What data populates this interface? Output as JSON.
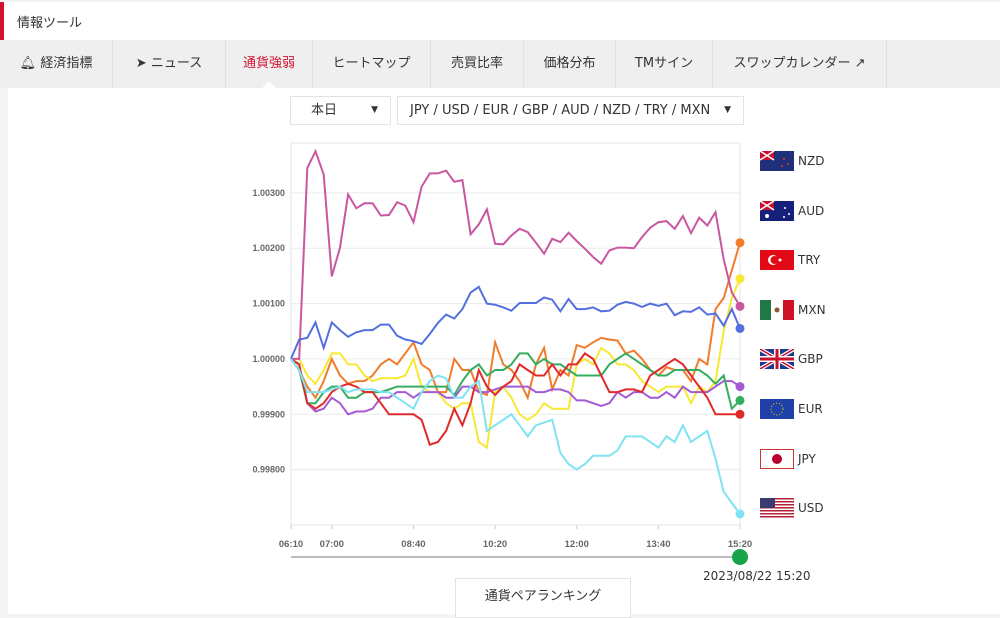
{
  "header": {
    "title": "情報ツール"
  },
  "tabs": [
    {
      "label": "経済指標",
      "icon": "bell-icon"
    },
    {
      "label": "ニュース",
      "icon": "rocket-icon"
    },
    {
      "label": "通貨強弱",
      "active": true
    },
    {
      "label": "ヒートマップ"
    },
    {
      "label": "売買比率"
    },
    {
      "label": "価格分布"
    },
    {
      "label": "TMサイン"
    },
    {
      "label": "スワップカレンダー",
      "icon": "external-link-icon"
    }
  ],
  "filters": {
    "period": "本日",
    "currencies": "JPY / USD / EUR / GBP / AUD / NZD / TRY / MXN"
  },
  "chart_data": {
    "type": "line",
    "x": [
      "06:10",
      "06:20",
      "06:30",
      "06:40",
      "06:50",
      "07:00",
      "07:10",
      "07:20",
      "07:30",
      "07:40",
      "07:50",
      "08:00",
      "08:10",
      "08:20",
      "08:30",
      "08:40",
      "08:50",
      "09:00",
      "09:10",
      "09:20",
      "09:30",
      "09:40",
      "09:50",
      "10:00",
      "10:10",
      "10:20",
      "10:30",
      "10:40",
      "10:50",
      "11:00",
      "11:10",
      "11:20",
      "11:30",
      "11:40",
      "11:50",
      "12:00",
      "12:10",
      "12:20",
      "12:30",
      "12:40",
      "12:50",
      "13:00",
      "13:10",
      "13:20",
      "13:30",
      "13:40",
      "13:50",
      "14:00",
      "14:10",
      "14:20",
      "14:30",
      "14:40",
      "14:50",
      "15:00",
      "15:10",
      "15:20"
    ],
    "xticks": [
      "06:10",
      "07:00",
      "08:40",
      "10:20",
      "12:00",
      "13:40",
      "15:20"
    ],
    "yticks": [
      "1.00300",
      "1.00200",
      "1.00100",
      "1.00000",
      "0.99900",
      "0.99800"
    ],
    "ylim": [
      0.997,
      1.0039
    ],
    "grid": true,
    "legend_position": "right",
    "series": [
      {
        "name": "NZD",
        "color": "#f07c2c",
        "values": [
          1.0,
          0.9998,
          0.9995,
          0.9993,
          0.9996,
          1.0,
          0.9997,
          0.99955,
          0.9996,
          0.9996,
          0.9997,
          0.9999,
          1.0,
          0.9999,
          1.0001,
          1.0003,
          0.9999,
          0.9998,
          0.9994,
          0.9994,
          1.0,
          0.9998,
          0.9998,
          0.9994,
          0.99935,
          1.0003,
          0.9999,
          0.9998,
          0.9996,
          0.9993,
          0.9999,
          1.0002,
          0.99945,
          0.9998,
          0.9997,
          1.00025,
          1.0002,
          1.0003,
          1.00038,
          1.00035,
          1.00033,
          1.0001,
          1.00015,
          1.0,
          0.9998,
          0.9997,
          0.99985,
          0.9998,
          0.9998,
          0.9996,
          1.0,
          0.9999,
          1.0009,
          1.0011,
          1.0016,
          1.0021
        ]
      },
      {
        "name": "AUD",
        "color": "#f7e835",
        "values": [
          1.0,
          1.0,
          0.9997,
          0.99955,
          0.9998,
          1.0001,
          1.0001,
          0.9999,
          0.9999,
          0.9997,
          0.9996,
          0.99965,
          0.99965,
          0.99965,
          0.9997,
          1.0,
          0.9995,
          0.9994,
          0.9994,
          0.9992,
          0.9991,
          0.9992,
          0.9992,
          0.9985,
          0.9984,
          0.9994,
          0.9995,
          0.9993,
          0.999,
          0.9989,
          0.999,
          0.9992,
          0.9991,
          0.9991,
          0.9991,
          0.9999,
          1.0,
          0.9999,
          1.0002,
          1.0001,
          0.9999,
          0.9999,
          0.9998,
          0.9996,
          0.9995,
          0.9994,
          0.9995,
          0.9995,
          0.9995,
          0.9992,
          0.9995,
          0.9994,
          0.9996,
          1.0005,
          1.0011,
          1.00145
        ]
      },
      {
        "name": "TRY",
        "color": "#c9579f",
        "values": [
          1.0,
          1.0,
          1.00345,
          1.00375,
          1.00333,
          1.00149,
          1.00201,
          1.00297,
          1.00272,
          1.00281,
          1.00281,
          1.00259,
          1.0026,
          1.00283,
          1.00277,
          1.00247,
          1.00311,
          1.00335,
          1.00335,
          1.0034,
          1.0032,
          1.00323,
          1.00225,
          1.00243,
          1.0027,
          1.00208,
          1.00207,
          1.00223,
          1.00235,
          1.00229,
          1.0021,
          1.0019,
          1.00217,
          1.00211,
          1.00228,
          1.00213,
          1.00199,
          1.00184,
          1.00172,
          1.00196,
          1.00201,
          1.00201,
          1.002,
          1.0022,
          1.00237,
          1.00247,
          1.00249,
          1.00235,
          1.00258,
          1.00227,
          1.00255,
          1.00241,
          1.00265,
          1.0018,
          1.0012,
          1.00095
        ]
      },
      {
        "name": "MXN",
        "color": "#5470e0",
        "values": [
          1.0,
          1.00035,
          1.00038,
          1.00066,
          1.0002,
          1.00066,
          1.00052,
          1.0004,
          1.00048,
          1.00052,
          1.00052,
          1.00062,
          1.00062,
          1.00042,
          1.00035,
          1.00032,
          1.00027,
          1.00045,
          1.00065,
          1.0008,
          1.00073,
          1.0009,
          1.0012,
          1.0013,
          1.001,
          1.00098,
          1.00093,
          1.00087,
          1.00101,
          1.00101,
          1.00101,
          1.00111,
          1.00107,
          1.00086,
          1.00108,
          1.0009,
          1.0009,
          1.00093,
          1.00086,
          1.00087,
          1.00098,
          1.00103,
          1.001,
          1.00094,
          1.001,
          1.00096,
          1.001,
          1.00079,
          1.00086,
          1.00085,
          1.00093,
          1.0008,
          1.00082,
          1.0006,
          1.0009,
          1.00055
        ]
      },
      {
        "name": "GBP",
        "color": "#a45ad6",
        "values": [
          1.0,
          0.9999,
          0.9992,
          0.99905,
          0.9991,
          0.9993,
          0.9992,
          0.999,
          0.99905,
          0.99905,
          0.9991,
          0.9993,
          0.9993,
          0.9994,
          0.9994,
          0.9993,
          0.9994,
          0.9994,
          0.9994,
          0.9993,
          0.9993,
          0.9995,
          0.9995,
          0.9994,
          0.9994,
          0.99945,
          0.9995,
          0.9995,
          0.9995,
          0.9995,
          0.9994,
          0.9994,
          0.99945,
          0.99945,
          0.9994,
          0.99925,
          0.99925,
          0.9992,
          0.99915,
          0.9992,
          0.9994,
          0.9993,
          0.9994,
          0.9994,
          0.9993,
          0.9993,
          0.9994,
          0.9993,
          0.9995,
          0.9994,
          0.9994,
          0.9994,
          0.9995,
          0.9996,
          0.9996,
          0.9995
        ]
      },
      {
        "name": "EUR",
        "color": "#35ad5e",
        "values": [
          1.0,
          0.9998,
          0.9992,
          0.9992,
          0.9994,
          0.9995,
          0.9995,
          0.9993,
          0.9993,
          0.9994,
          0.9994,
          0.9994,
          0.99945,
          0.9995,
          0.9995,
          0.9995,
          0.9995,
          0.9995,
          0.9995,
          0.9995,
          0.99935,
          0.9996,
          0.9998,
          0.9999,
          0.9997,
          0.9998,
          0.9998,
          0.9999,
          1.0001,
          1.0001,
          0.9999,
          1.0,
          0.9999,
          0.9999,
          0.9998,
          0.9997,
          0.9997,
          0.9997,
          0.9997,
          0.9999,
          1.0,
          1.0001,
          1.0,
          0.9999,
          0.9998,
          0.9997,
          0.9997,
          0.9998,
          0.9998,
          0.9998,
          0.9998,
          0.9997,
          0.99955,
          0.9997,
          0.9991,
          0.99925
        ]
      },
      {
        "name": "JPY",
        "color": "#e02a2a",
        "values": [
          1.0,
          0.9999,
          0.9992,
          0.9991,
          0.9992,
          0.9994,
          0.9995,
          0.99955,
          0.9995,
          0.9994,
          0.9994,
          0.9992,
          0.999,
          0.999,
          0.999,
          0.999,
          0.9989,
          0.99845,
          0.9985,
          0.9987,
          0.9991,
          0.9988,
          0.9992,
          0.9998,
          0.9995,
          0.99935,
          0.9995,
          0.9996,
          0.9999,
          0.9998,
          0.9997,
          0.9997,
          0.9999,
          0.9997,
          0.9999,
          0.9999,
          1.0001,
          1.0,
          0.9997,
          0.9994,
          0.9994,
          0.99945,
          0.99945,
          0.9994,
          0.9997,
          0.9998,
          0.9999,
          1.0,
          0.9999,
          0.9997,
          0.9995,
          0.9993,
          0.999,
          0.999,
          0.999,
          0.999
        ]
      },
      {
        "name": "USD",
        "color": "#7fe3f2",
        "values": [
          1.0,
          0.9998,
          0.9994,
          0.9994,
          0.9994,
          0.99945,
          0.9995,
          0.9994,
          0.99945,
          0.99945,
          0.99945,
          0.9994,
          0.9994,
          0.9993,
          0.9992,
          0.9991,
          0.9994,
          0.9996,
          0.9997,
          0.99965,
          0.9993,
          0.9993,
          0.9995,
          0.9996,
          0.9987,
          0.9988,
          0.9989,
          0.999,
          0.9988,
          0.9986,
          0.9988,
          0.99885,
          0.9989,
          0.9983,
          0.9981,
          0.998,
          0.9981,
          0.99825,
          0.99825,
          0.99825,
          0.99835,
          0.9986,
          0.9986,
          0.9986,
          0.9985,
          0.9984,
          0.9986,
          0.9985,
          0.9988,
          0.9985,
          0.9986,
          0.9987,
          0.9982,
          0.9976,
          0.9974,
          0.9972
        ]
      }
    ]
  },
  "slider": {
    "value": "2023/08/22 15:20",
    "position": 1.0
  },
  "ranking_button": "通貨ペアランキング"
}
